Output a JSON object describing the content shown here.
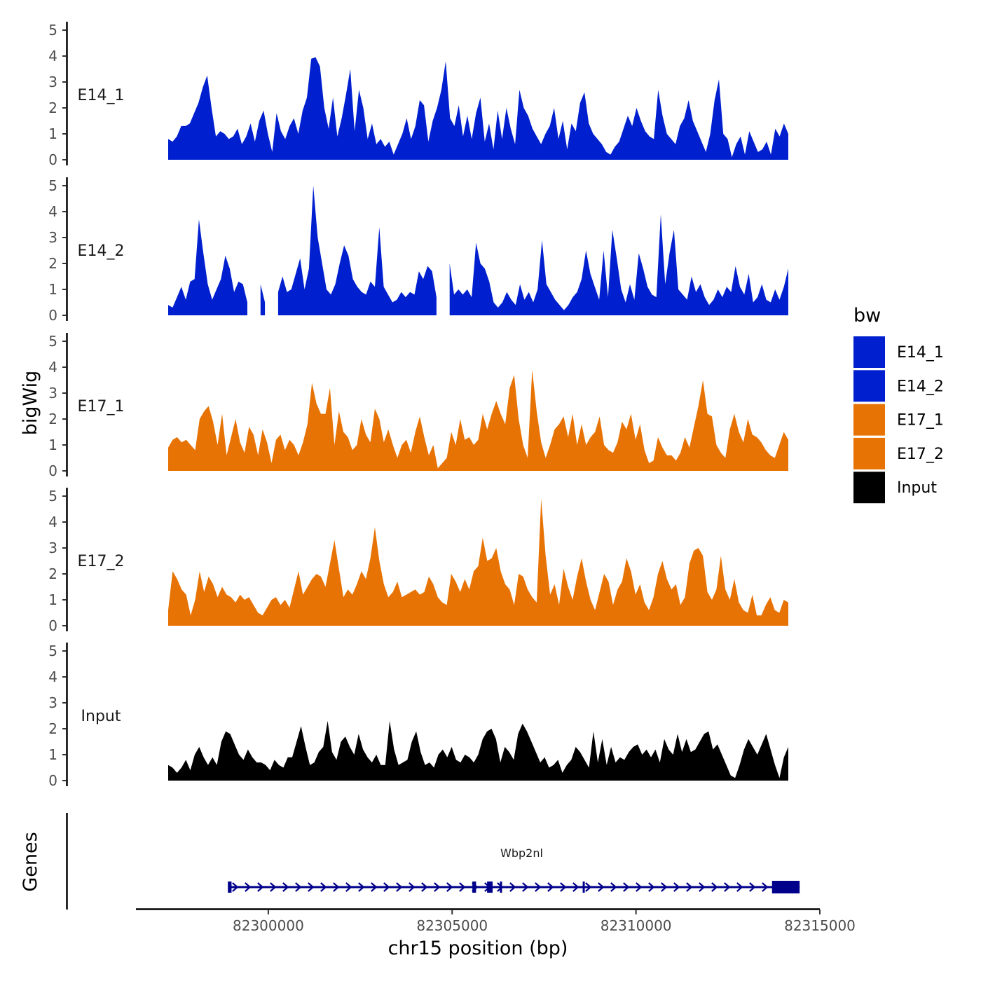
{
  "chart_data": {
    "type": "area",
    "y_axis_title": "bigWig",
    "x_axis_title": "chr15 position (bp)",
    "xlim": [
      82296400,
      82315000
    ],
    "ylim": [
      0,
      5
    ],
    "y_ticks": [
      "0",
      "1",
      "2",
      "3",
      "4",
      "5"
    ],
    "x_ticks": [
      {
        "value": 82300000,
        "label": "82300000"
      },
      {
        "value": 82305000,
        "label": "82305000"
      },
      {
        "value": 82310000,
        "label": "82310000"
      },
      {
        "value": 82315000,
        "label": "82315000"
      }
    ],
    "legend": {
      "title": "bw",
      "items": [
        {
          "label": "E14_1",
          "color": "#0020D0"
        },
        {
          "label": "E14_2",
          "color": "#0020D0"
        },
        {
          "label": "E17_1",
          "color": "#E87305"
        },
        {
          "label": "E17_2",
          "color": "#E87305"
        },
        {
          "label": "Input",
          "color": "#000000"
        }
      ]
    },
    "x_start": 82296400,
    "x_end": 82313880,
    "series": [
      {
        "name": "E14_1",
        "color": "#0020D0",
        "values": [
          0.8,
          0.7,
          0.9,
          1.3,
          1.3,
          1.4,
          1.8,
          2.2,
          2.8,
          3.25,
          2.0,
          0.9,
          1.1,
          1.0,
          0.8,
          0.9,
          1.2,
          0.6,
          0.9,
          1.4,
          0.7,
          1.5,
          1.9,
          1.0,
          0.3,
          1.8,
          1.1,
          0.8,
          1.3,
          1.6,
          1.0,
          1.9,
          2.4,
          3.9,
          3.95,
          3.6,
          2.0,
          1.2,
          2.4,
          0.9,
          1.6,
          2.5,
          3.5,
          1.1,
          2.7,
          2.0,
          0.8,
          1.4,
          0.6,
          0.8,
          0.5,
          0.7,
          0.2,
          0.6,
          1.0,
          1.6,
          0.8,
          1.3,
          2.3,
          2.1,
          0.7,
          1.5,
          2.0,
          2.7,
          3.8,
          1.6,
          1.3,
          2.1,
          0.9,
          1.7,
          0.8,
          1.8,
          2.4,
          0.7,
          1.4,
          0.4,
          1.9,
          0.8,
          2.0,
          1.2,
          0.6,
          2.7,
          2.0,
          1.7,
          1.2,
          0.9,
          0.6,
          1.0,
          1.3,
          2.0,
          0.8,
          1.5,
          0.4,
          1.4,
          1.1,
          2.2,
          2.6,
          1.4,
          1.0,
          0.8,
          0.6,
          0.3,
          0.2,
          0.5,
          0.7,
          1.2,
          1.7,
          1.3,
          2.0,
          1.5,
          1.1,
          0.9,
          0.8,
          2.7,
          1.7,
          1.0,
          0.8,
          0.6,
          1.3,
          1.6,
          2.3,
          1.5,
          1.1,
          0.7,
          0.3,
          1.0,
          2.3,
          3.1,
          1.0,
          0.8,
          0.1,
          0.6,
          0.9,
          0.2,
          1.1,
          0.7,
          0.3,
          0.4,
          0.7,
          0.2,
          1.2,
          0.9,
          1.4,
          1.0
        ]
      },
      {
        "name": "E14_2",
        "color": "#0020D0",
        "values": [
          0.4,
          0.3,
          0.7,
          1.1,
          0.6,
          1.3,
          1.4,
          3.7,
          2.4,
          1.2,
          0.6,
          1.0,
          1.4,
          2.3,
          1.8,
          0.9,
          1.3,
          1.2,
          0.5,
          null,
          null,
          1.2,
          0.5,
          null,
          null,
          0.9,
          1.5,
          0.9,
          1.0,
          1.6,
          2.2,
          1.0,
          1.8,
          5.0,
          3.0,
          2.0,
          1.0,
          0.8,
          1.2,
          2.0,
          2.7,
          2.3,
          1.4,
          1.1,
          0.9,
          0.8,
          1.3,
          1.1,
          3.4,
          1.1,
          0.8,
          0.5,
          0.6,
          0.9,
          0.7,
          0.9,
          0.8,
          1.7,
          1.4,
          1.9,
          1.7,
          0.7,
          null,
          null,
          2.0,
          0.8,
          1.0,
          0.8,
          1.0,
          0.7,
          2.8,
          2.0,
          1.8,
          1.3,
          0.5,
          0.3,
          0.5,
          0.9,
          0.6,
          0.4,
          1.2,
          0.6,
          0.9,
          0.5,
          1.0,
          2.9,
          1.2,
          0.9,
          0.6,
          0.4,
          0.2,
          0.4,
          0.7,
          0.9,
          1.4,
          2.5,
          1.6,
          1.1,
          0.6,
          2.5,
          0.7,
          3.3,
          2.2,
          1.0,
          0.5,
          1.2,
          0.6,
          2.4,
          1.8,
          1.1,
          0.8,
          0.7,
          3.9,
          1.2,
          2.4,
          3.3,
          1.0,
          0.8,
          0.6,
          1.5,
          0.9,
          1.2,
          0.7,
          0.4,
          0.6,
          1.0,
          0.7,
          1.1,
          0.9,
          1.9,
          1.1,
          0.8,
          1.6,
          0.5,
          0.7,
          1.2,
          0.6,
          0.5,
          1.0,
          0.6,
          1.1,
          1.8
        ]
      },
      {
        "name": "E17_1",
        "color": "#E87305",
        "values": [
          0.9,
          1.2,
          1.3,
          1.1,
          1.2,
          1.0,
          0.8,
          2.0,
          2.3,
          2.5,
          1.9,
          1.0,
          2.2,
          0.6,
          1.3,
          2.0,
          1.1,
          0.7,
          1.7,
          1.4,
          0.6,
          1.6,
          1.1,
          0.3,
          1.2,
          1.4,
          0.8,
          1.2,
          1.0,
          0.6,
          1.1,
          1.8,
          3.4,
          2.6,
          2.2,
          2.2,
          3.2,
          1.0,
          2.3,
          1.5,
          1.3,
          0.8,
          1.0,
          2.0,
          1.4,
          1.1,
          2.4,
          2.0,
          1.1,
          1.6,
          1.0,
          0.5,
          1.0,
          1.2,
          0.7,
          1.5,
          2.1,
          1.3,
          0.6,
          1.0,
          0.1,
          0.3,
          0.5,
          1.5,
          1.0,
          2.0,
          1.2,
          1.3,
          1.0,
          1.2,
          2.2,
          1.6,
          2.2,
          2.7,
          2.2,
          1.8,
          3.2,
          3.7,
          2.0,
          1.0,
          0.5,
          3.9,
          2.3,
          1.1,
          0.5,
          1.0,
          1.6,
          1.8,
          2.1,
          1.3,
          2.2,
          1.0,
          1.8,
          1.0,
          1.3,
          1.5,
          2.1,
          1.0,
          0.8,
          0.7,
          1.1,
          1.9,
          1.6,
          2.2,
          1.2,
          1.8,
          0.8,
          0.3,
          0.4,
          1.3,
          0.9,
          0.6,
          0.6,
          0.4,
          0.7,
          1.3,
          0.9,
          1.7,
          2.5,
          3.5,
          2.2,
          2.1,
          1.0,
          0.7,
          0.5,
          1.6,
          2.2,
          1.5,
          1.1,
          2.0,
          1.4,
          1.3,
          1.1,
          0.8,
          0.6,
          0.5,
          1.0,
          1.5,
          1.2
        ]
      },
      {
        "name": "E17_2",
        "color": "#E87305",
        "values": [
          0.6,
          2.1,
          1.8,
          1.4,
          1.2,
          0.4,
          1.0,
          2.1,
          1.3,
          1.9,
          1.6,
          1.1,
          1.5,
          1.2,
          1.1,
          0.9,
          1.2,
          1.0,
          1.1,
          0.8,
          0.5,
          0.4,
          0.7,
          1.0,
          1.1,
          0.8,
          1.0,
          0.7,
          1.4,
          2.1,
          1.2,
          1.5,
          1.8,
          2.0,
          1.9,
          1.5,
          2.4,
          3.3,
          2.2,
          1.1,
          1.4,
          1.2,
          1.6,
          2.1,
          1.8,
          2.6,
          3.8,
          2.5,
          1.6,
          1.1,
          1.3,
          1.7,
          1.1,
          1.2,
          1.3,
          1.4,
          1.2,
          1.3,
          1.9,
          1.6,
          1.1,
          0.9,
          0.8,
          2.0,
          1.7,
          1.3,
          1.8,
          1.4,
          2.1,
          2.3,
          3.4,
          2.5,
          2.6,
          3.0,
          2.1,
          1.6,
          1.4,
          0.8,
          2.0,
          1.9,
          1.4,
          1.1,
          0.9,
          4.9,
          2.7,
          1.2,
          1.6,
          0.8,
          2.2,
          1.5,
          1.0,
          1.9,
          2.6,
          1.7,
          1.0,
          0.6,
          1.3,
          2.0,
          1.7,
          0.8,
          1.4,
          1.7,
          2.6,
          2.1,
          1.2,
          1.6,
          0.9,
          0.6,
          1.1,
          2.0,
          2.5,
          1.8,
          1.4,
          1.6,
          0.8,
          1.1,
          2.4,
          2.9,
          3.0,
          2.7,
          1.3,
          1.0,
          1.4,
          2.7,
          1.4,
          1.0,
          1.8,
          0.9,
          0.6,
          0.5,
          1.2,
          0.4,
          0.4,
          0.8,
          1.1,
          0.6,
          0.5,
          1.0,
          0.9
        ]
      },
      {
        "name": "Input",
        "color": "#000000",
        "values": [
          0.6,
          0.5,
          0.3,
          0.5,
          0.8,
          0.4,
          1.0,
          1.3,
          0.9,
          0.6,
          0.9,
          0.6,
          1.5,
          1.9,
          1.8,
          1.4,
          1.0,
          0.8,
          1.2,
          0.9,
          0.7,
          0.7,
          0.6,
          0.4,
          0.8,
          0.6,
          0.5,
          0.9,
          0.9,
          1.5,
          2.1,
          1.3,
          0.6,
          0.7,
          1.1,
          1.3,
          2.3,
          1.1,
          0.8,
          1.5,
          1.7,
          1.3,
          1.0,
          1.8,
          1.2,
          0.9,
          0.7,
          1.0,
          0.6,
          0.6,
          2.3,
          1.2,
          0.6,
          0.7,
          0.8,
          1.5,
          1.9,
          1.1,
          0.6,
          0.7,
          0.5,
          1.0,
          1.2,
          0.9,
          1.3,
          0.8,
          0.7,
          1.0,
          0.9,
          0.7,
          1.0,
          1.6,
          1.9,
          2.0,
          1.6,
          0.7,
          1.3,
          1.1,
          0.8,
          1.8,
          2.2,
          1.9,
          1.5,
          1.1,
          0.7,
          0.9,
          0.5,
          0.6,
          0.8,
          0.3,
          0.6,
          0.8,
          1.3,
          1.1,
          0.8,
          0.5,
          1.9,
          0.7,
          1.6,
          0.6,
          1.3,
          0.7,
          0.9,
          0.8,
          1.1,
          1.3,
          1.4,
          1.0,
          1.2,
          0.9,
          1.2,
          0.7,
          1.6,
          1.2,
          1.0,
          1.8,
          1.1,
          1.6,
          1.1,
          1.2,
          1.5,
          1.8,
          1.9,
          1.2,
          1.4,
          1.0,
          0.6,
          0.2,
          0.1,
          0.6,
          1.2,
          1.6,
          1.3,
          1.0,
          1.4,
          1.8,
          1.2,
          0.6,
          0.1,
          0.9,
          1.3
        ]
      }
    ],
    "genes": {
      "title": "Genes",
      "items": [
        {
          "name": "Wbp2nl",
          "start": 82298950,
          "end": 82314450,
          "strand": "+",
          "exons": [
            [
              82298900,
              82299000
            ],
            [
              82305550,
              82305650
            ],
            [
              82305950,
              82306100
            ],
            [
              82306300,
              82306350
            ],
            [
              82308550,
              82308600
            ],
            [
              82313700,
              82314450
            ]
          ]
        }
      ]
    }
  }
}
